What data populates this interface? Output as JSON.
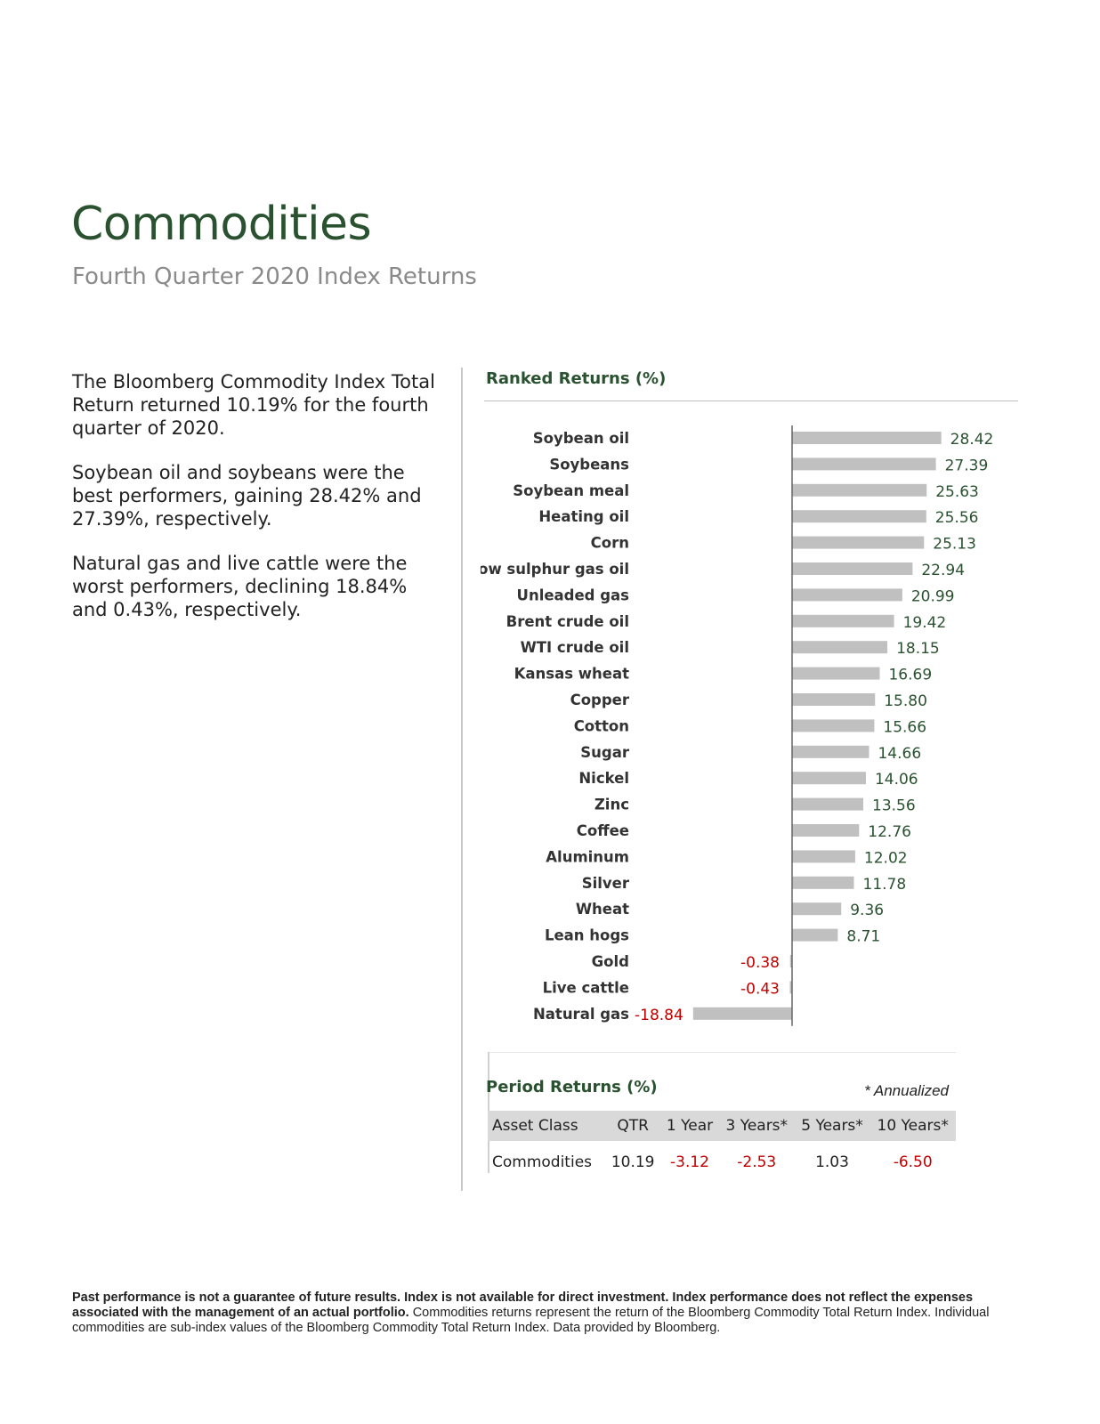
{
  "header": {
    "title": "Commodities",
    "subtitle": "Fourth Quarter 2020 Index Returns"
  },
  "summary": {
    "paragraphs": [
      "The Bloomberg Commodity Index Total Return returned 10.19% for the fourth quarter of 2020.",
      "Soybean oil and soybeans were the best performers, gaining 28.42% and 27.39%, respectively.",
      "Natural gas and live cattle were the worst performers, declining 18.84% and 0.43%, respectively."
    ]
  },
  "ranked": {
    "title": "Ranked Returns (%)"
  },
  "chart_data": {
    "type": "bar",
    "orientation": "horizontal",
    "categories": [
      "Soybean oil",
      "Soybeans",
      "Soybean meal",
      "Heating oil",
      "Corn",
      "Low sulphur gas oil",
      "Unleaded gas",
      "Brent crude oil",
      "WTI crude oil",
      "Kansas wheat",
      "Copper",
      "Cotton",
      "Sugar",
      "Nickel",
      "Zinc",
      "Coffee",
      "Aluminum",
      "Silver",
      "Wheat",
      "Lean hogs",
      "Gold",
      "Live cattle",
      "Natural gas"
    ],
    "values": [
      28.42,
      27.39,
      25.63,
      25.56,
      25.13,
      22.94,
      20.99,
      19.42,
      18.15,
      16.69,
      15.8,
      15.66,
      14.66,
      14.06,
      13.56,
      12.76,
      12.02,
      11.78,
      9.36,
      8.71,
      -0.38,
      -0.43,
      -18.84
    ],
    "value_labels": [
      "28.42",
      "27.39",
      "25.63",
      "25.56",
      "25.13",
      "22.94",
      "20.99",
      "19.42",
      "18.15",
      "16.69",
      "15.80",
      "15.66",
      "14.66",
      "14.06",
      "13.56",
      "12.76",
      "12.02",
      "11.78",
      "9.36",
      "8.71",
      "-0.38",
      "-0.43",
      "-18.84"
    ],
    "title": "Ranked Returns (%)",
    "xlabel": "",
    "ylabel": "",
    "bar_color": "#c0c0c0",
    "positive_label_color": "#2a5230",
    "negative_label_color": "#c00000"
  },
  "period": {
    "title": "Period Returns (%)",
    "note": "* Annualized",
    "headers": [
      "Asset Class",
      "QTR",
      "1 Year",
      "3 Years*",
      "5 Years*",
      "10 Years*"
    ],
    "rows": [
      [
        "Commodities",
        "10.19",
        "-3.12",
        "-2.53",
        "1.03",
        "-6.50"
      ]
    ]
  },
  "footnote": {
    "bold": "Past performance is not a guarantee of future results. Index is not available for direct investment. Index performance does not reflect the expenses associated with the management of an actual portfolio.",
    "normal": " Commodities returns represent the return of the Bloomberg Commodity Total Return Index. Individual commodities are sub-index values of the Bloomberg Commodity Total Return Index. Data provided by Bloomberg."
  },
  "colors": {
    "accent_green": "#2a5230",
    "negative_red": "#c00000",
    "bar_gray": "#c0c0c0",
    "table_header_bg": "#d9d9d9"
  }
}
